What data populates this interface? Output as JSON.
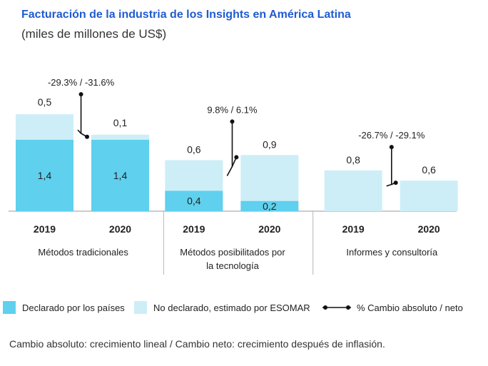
{
  "chart_data": {
    "type": "bar",
    "title": "Facturación de la industria de los Insights en América Latina",
    "subtitle": "(miles de millones de US$)",
    "groups": [
      {
        "name": "Métodos tradicionales",
        "name_lines": [
          "Métodos tradicionales"
        ],
        "change_label": "-29.3% / -31.6%",
        "bars": [
          {
            "year": "2019",
            "declared": 1.4,
            "declared_label": "1,4",
            "estimated": 0.5,
            "estimated_label": "0,5"
          },
          {
            "year": "2020",
            "declared": 1.4,
            "declared_label": "1,4",
            "estimated": 0.1,
            "estimated_label": "0,1"
          }
        ]
      },
      {
        "name": "Métodos posibilitados por la tecnología",
        "name_lines": [
          "Métodos posibilitados por",
          "la tecnología"
        ],
        "change_label": "9.8% / 6.1%",
        "bars": [
          {
            "year": "2019",
            "declared": 0.4,
            "declared_label": "0,4",
            "estimated": 0.6,
            "estimated_label": "0,6"
          },
          {
            "year": "2020",
            "declared": 0.2,
            "declared_label": "0,2",
            "estimated": 0.9,
            "estimated_label": "0,9"
          }
        ]
      },
      {
        "name": "Informes y consultoría",
        "name_lines": [
          "Informes y consultoría"
        ],
        "change_label": "-26.7% / -29.1%",
        "bars": [
          {
            "year": "2019",
            "declared": 0,
            "declared_label": "",
            "estimated": 0.8,
            "estimated_label": "0,8"
          },
          {
            "year": "2020",
            "declared": 0,
            "declared_label": "",
            "estimated": 0.6,
            "estimated_label": "0,6"
          }
        ]
      }
    ],
    "series": [
      {
        "name": "Declarado por los países",
        "color": "#5fd0ee"
      },
      {
        "name": "No declarado, estimado por ESOMAR",
        "color": "#cdeef7"
      }
    ],
    "change_legend": "% Cambio absoluto / neto",
    "legend_position": "bottom",
    "grid": false
  },
  "footnote": "Cambio absoluto: crecimiento lineal / Cambio neto: crecimiento después de inflasión."
}
